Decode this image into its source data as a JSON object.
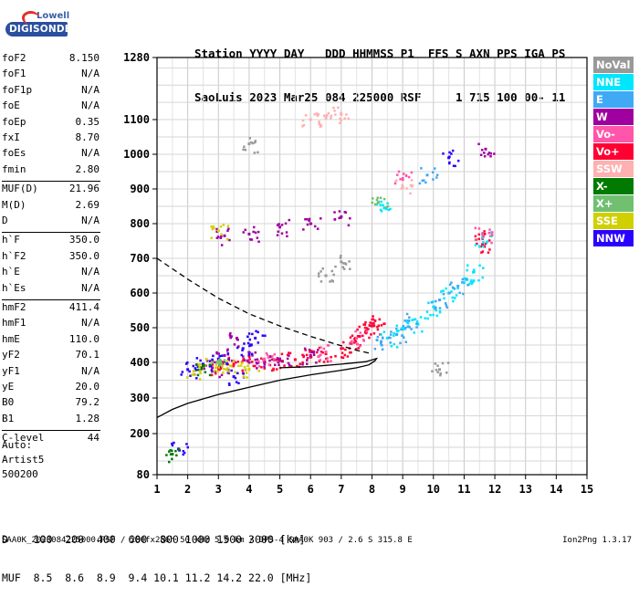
{
  "logo": {
    "top_text": "Lowell",
    "bottom_text": "DIGISONDE",
    "top_color": "#3b5fa8",
    "bottom_color": "#ffffff",
    "badge_color": "#2a4f9e"
  },
  "header": {
    "line1": "Station YYYY DAY   DDD HHMMSS P1  FFS S AXN PPS IGA PS",
    "line2": "SaoLuis 2023 Mar25 084 225000 RSF     1 715 100 00- 11"
  },
  "parameters": [
    {
      "label": "foF2",
      "value": "8.150"
    },
    {
      "label": "foF1",
      "value": "N/A"
    },
    {
      "label": "foF1p",
      "value": "N/A"
    },
    {
      "label": "foE",
      "value": "N/A"
    },
    {
      "label": "foEp",
      "value": "0.35"
    },
    {
      "label": "fxI",
      "value": "8.70"
    },
    {
      "label": "foEs",
      "value": "N/A"
    },
    {
      "label": "fmin",
      "value": "2.80"
    },
    {
      "label": "MUF(D)",
      "value": "21.96"
    },
    {
      "label": "M(D)",
      "value": "2.69"
    },
    {
      "label": "D",
      "value": "N/A"
    },
    {
      "label": "h`F",
      "value": "350.0"
    },
    {
      "label": "h`F2",
      "value": "350.0"
    },
    {
      "label": "h`E",
      "value": "N/A"
    },
    {
      "label": "h`Es",
      "value": "N/A"
    },
    {
      "label": "hmF2",
      "value": "411.4"
    },
    {
      "label": "hmF1",
      "value": "N/A"
    },
    {
      "label": "hmE",
      "value": "110.0"
    },
    {
      "label": "yF2",
      "value": "70.1"
    },
    {
      "label": "yF1",
      "value": "N/A"
    },
    {
      "label": "yE",
      "value": "20.0"
    },
    {
      "label": "B0",
      "value": "79.2"
    },
    {
      "label": "B1",
      "value": "1.28"
    },
    {
      "label": "C-level",
      "value": "44"
    }
  ],
  "autoscale": {
    "line1": "Auto:",
    "line2": "Artist5",
    "line3": "500200"
  },
  "legend": [
    {
      "label": "NoVal",
      "bg": "#999999",
      "fg": "#ffffff"
    },
    {
      "label": "NNE",
      "bg": "#00e6ff",
      "fg": "#ffffff"
    },
    {
      "label": "E",
      "bg": "#3fa9f5",
      "fg": "#ffffff"
    },
    {
      "label": "W",
      "bg": "#a000a0",
      "fg": "#ffffff"
    },
    {
      "label": "Vo-",
      "bg": "#ff55aa",
      "fg": "#ffffff"
    },
    {
      "label": "Vo+",
      "bg": "#ff0033",
      "fg": "#ffffff"
    },
    {
      "label": "SSW",
      "bg": "#ffb0b0",
      "fg": "#ffffff"
    },
    {
      "label": "X-",
      "bg": "#007a00",
      "fg": "#ffffff"
    },
    {
      "label": "X+",
      "bg": "#70c070",
      "fg": "#ffffff"
    },
    {
      "label": "SSE",
      "bg": "#d0d000",
      "fg": "#ffffff"
    },
    {
      "label": "NNW",
      "bg": "#2a00ff",
      "fg": "#ffffff"
    }
  ],
  "distance_table": {
    "line1": "D    100  200  400  600  800 1000 1500 3000 [km]",
    "line2": "MUF  8.5  8.6  8.9  9.4 10.1 11.2 14.2 22.0 [MHz]"
  },
  "footer": {
    "left": "SAA0K_2023084225000.RSF / 280fx256h 50 kHz 5.0 km / DPS-4 SAA0K 903 / 2.6 S 315.8 E",
    "right": "Ion2Png 1.3.17"
  },
  "chart_data": {
    "type": "scatter",
    "title": "",
    "xlabel": "",
    "ylabel": "",
    "x_ticks": [
      1,
      2,
      3,
      4,
      5,
      6,
      7,
      8,
      9,
      10,
      11,
      12,
      13,
      14,
      15
    ],
    "y_ticks": [
      80,
      200,
      300,
      400,
      500,
      600,
      700,
      800,
      900,
      1000,
      1100,
      1280
    ],
    "xlim": [
      1,
      15
    ],
    "ylim": [
      80,
      1280
    ],
    "grid": true,
    "series": [
      {
        "name": "Vo+",
        "color": "#ff0033",
        "points": [
          [
            3.0,
            385
          ],
          [
            3.5,
            395
          ],
          [
            4.0,
            400
          ],
          [
            4.5,
            402
          ],
          [
            5.0,
            405
          ],
          [
            5.5,
            408
          ],
          [
            6.0,
            415
          ],
          [
            6.5,
            425
          ],
          [
            7.0,
            440
          ],
          [
            7.3,
            455
          ],
          [
            7.6,
            475
          ],
          [
            7.8,
            490
          ],
          [
            8.0,
            505
          ],
          [
            8.1,
            520
          ],
          [
            11.6,
            740
          ],
          [
            11.6,
            760
          ]
        ]
      },
      {
        "name": "W",
        "color": "#a000a0",
        "points": [
          [
            2.8,
            385
          ],
          [
            3.2,
            420
          ],
          [
            3.6,
            470
          ],
          [
            4.0,
            420
          ],
          [
            4.5,
            400
          ],
          [
            5.0,
            410
          ],
          [
            6.0,
            420
          ],
          [
            3.2,
            765
          ],
          [
            4.0,
            770
          ],
          [
            5.0,
            790
          ],
          [
            6.0,
            800
          ],
          [
            7.0,
            820
          ],
          [
            11.7,
            1015
          ]
        ]
      },
      {
        "name": "NNE",
        "color": "#00e6ff",
        "points": [
          [
            8.5,
            470
          ],
          [
            9.0,
            500
          ],
          [
            9.5,
            510
          ],
          [
            10.0,
            560
          ],
          [
            10.5,
            600
          ],
          [
            11.0,
            630
          ],
          [
            11.3,
            660
          ],
          [
            8.4,
            845
          ],
          [
            11.6,
            760
          ]
        ]
      },
      {
        "name": "E",
        "color": "#3fa9f5",
        "points": [
          [
            8.3,
            460
          ],
          [
            8.8,
            480
          ],
          [
            9.2,
            520
          ],
          [
            10.2,
            580
          ],
          [
            10.8,
            620
          ],
          [
            9.8,
            940
          ]
        ]
      },
      {
        "name": "NNW",
        "color": "#2a00ff",
        "points": [
          [
            2.0,
            380
          ],
          [
            2.5,
            395
          ],
          [
            3.0,
            410
          ],
          [
            3.8,
            440
          ],
          [
            4.2,
            470
          ],
          [
            3.5,
            360
          ],
          [
            1.7,
            155
          ],
          [
            10.5,
            990
          ]
        ]
      },
      {
        "name": "SSE",
        "color": "#d0d000",
        "points": [
          [
            2.2,
            375
          ],
          [
            2.8,
            400
          ],
          [
            3.4,
            390
          ],
          [
            4.0,
            380
          ],
          [
            3.0,
            780
          ]
        ]
      },
      {
        "name": "SSW",
        "color": "#ffb0b0",
        "points": [
          [
            6.0,
            1100
          ],
          [
            6.5,
            1105
          ],
          [
            7.0,
            1115
          ],
          [
            9.0,
            905
          ]
        ]
      },
      {
        "name": "X-",
        "color": "#007a00",
        "points": [
          [
            1.5,
            140
          ],
          [
            2.5,
            390
          ]
        ]
      },
      {
        "name": "X+",
        "color": "#70c070",
        "points": [
          [
            8.2,
            860
          ],
          [
            3.0,
            400
          ]
        ]
      },
      {
        "name": "Vo-",
        "color": "#ff55aa",
        "points": [
          [
            4.5,
            410
          ],
          [
            6.5,
            430
          ],
          [
            7.5,
            470
          ],
          [
            9.0,
            930
          ],
          [
            11.6,
            770
          ]
        ]
      },
      {
        "name": "NoVal",
        "color": "#999999",
        "points": [
          [
            7.0,
            690
          ],
          [
            6.5,
            650
          ],
          [
            4.0,
            1030
          ],
          [
            10.2,
            380
          ]
        ]
      }
    ],
    "curves": [
      {
        "name": "profile",
        "style": "solid",
        "points": [
          [
            1.0,
            245
          ],
          [
            1.5,
            268
          ],
          [
            2.0,
            285
          ],
          [
            3.0,
            310
          ],
          [
            4.0,
            330
          ],
          [
            5.0,
            350
          ],
          [
            6.0,
            365
          ],
          [
            7.0,
            378
          ],
          [
            7.5,
            385
          ],
          [
            7.9,
            393
          ],
          [
            8.1,
            405
          ],
          [
            8.15,
            411
          ],
          [
            7.8,
            402
          ],
          [
            7.0,
            395
          ],
          [
            6.0,
            388
          ],
          [
            5.0,
            385
          ]
        ]
      },
      {
        "name": "virtual-trace",
        "style": "dashed",
        "points": [
          [
            1.0,
            700
          ],
          [
            2.0,
            640
          ],
          [
            3.0,
            585
          ],
          [
            4.0,
            540
          ],
          [
            5.0,
            505
          ],
          [
            6.0,
            475
          ],
          [
            7.0,
            448
          ],
          [
            7.5,
            435
          ],
          [
            8.0,
            425
          ]
        ]
      }
    ]
  }
}
